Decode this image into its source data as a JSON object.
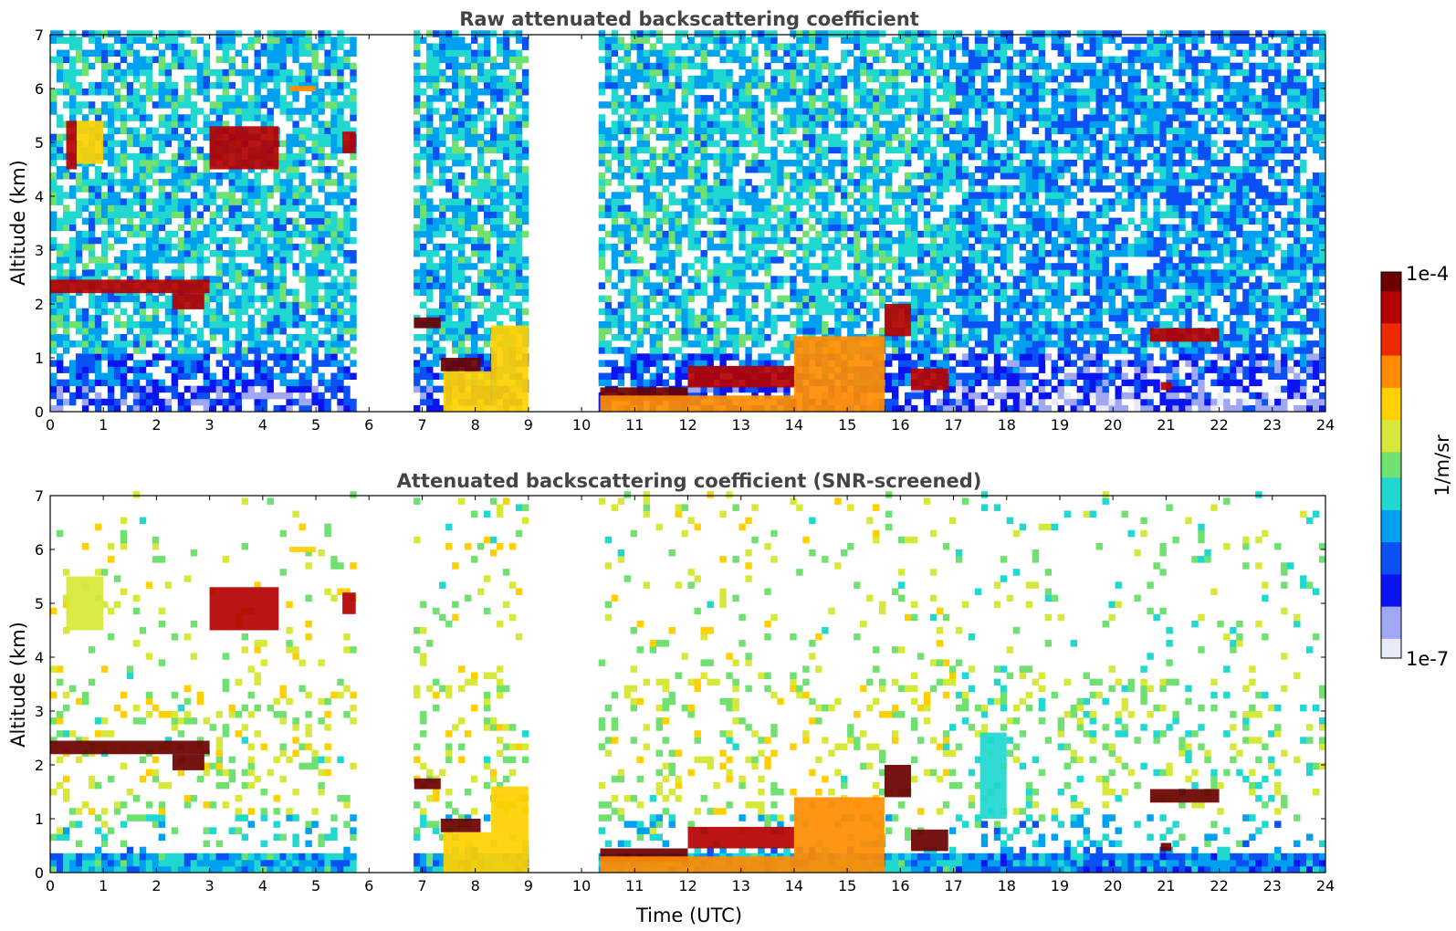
{
  "chart_data": [
    {
      "type": "heatmap",
      "title": "Raw attenuated backscattering coefficient",
      "xlabel": "",
      "ylabel": "Altitude (km)",
      "xlim": [
        0,
        24
      ],
      "ylim": [
        0,
        7
      ],
      "xticks": [
        "0",
        "1",
        "2",
        "3",
        "4",
        "5",
        "6",
        "7",
        "8",
        "9",
        "10",
        "11",
        "12",
        "13",
        "14",
        "15",
        "16",
        "17",
        "18",
        "19",
        "20",
        "21",
        "22",
        "23",
        "24"
      ],
      "yticks": [
        "0",
        "1",
        "2",
        "3",
        "4",
        "5",
        "6",
        "7"
      ],
      "data_gaps_utc": [
        [
          5.75,
          6.85
        ],
        [
          9.0,
          10.35
        ]
      ],
      "features": [
        {
          "t0": 0.3,
          "t1": 0.5,
          "z0": 4.5,
          "z1": 5.4,
          "level": 0.9
        },
        {
          "t0": 0.5,
          "t1": 1.0,
          "z0": 4.6,
          "z1": 5.4,
          "level": 0.7
        },
        {
          "t0": 3.0,
          "t1": 4.3,
          "z0": 4.5,
          "z1": 5.3,
          "level": 0.88
        },
        {
          "t0": 4.5,
          "t1": 5.0,
          "z0": 5.95,
          "z1": 6.05,
          "level": 0.75
        },
        {
          "t0": 5.5,
          "t1": 5.75,
          "z0": 4.8,
          "z1": 5.2,
          "level": 0.92
        },
        {
          "t0": 0.0,
          "t1": 3.0,
          "z0": 2.2,
          "z1": 2.45,
          "level": 0.95
        },
        {
          "t0": 2.3,
          "t1": 2.9,
          "z0": 1.9,
          "z1": 2.2,
          "level": 0.95
        },
        {
          "t0": 6.85,
          "t1": 7.35,
          "z0": 1.55,
          "z1": 1.75,
          "level": 0.97
        },
        {
          "t0": 7.35,
          "t1": 8.1,
          "z0": 0.75,
          "z1": 1.0,
          "level": 0.97
        },
        {
          "t0": 7.4,
          "t1": 8.3,
          "z0": 0.0,
          "z1": 0.75,
          "level": 0.7
        },
        {
          "t0": 8.3,
          "t1": 9.0,
          "z0": 0.0,
          "z1": 1.6,
          "level": 0.65
        },
        {
          "t0": 10.35,
          "t1": 12.0,
          "z0": 0.2,
          "z1": 0.45,
          "level": 0.96
        },
        {
          "t0": 12.0,
          "t1": 14.0,
          "z0": 0.45,
          "z1": 0.85,
          "level": 0.92
        },
        {
          "t0": 10.35,
          "t1": 14.0,
          "z0": 0.0,
          "z1": 0.3,
          "level": 0.72
        },
        {
          "t0": 14.0,
          "t1": 15.7,
          "z0": 0.0,
          "z1": 1.4,
          "level": 0.78
        },
        {
          "t0": 15.7,
          "t1": 16.2,
          "z0": 1.4,
          "z1": 2.0,
          "level": 0.95
        },
        {
          "t0": 16.2,
          "t1": 16.9,
          "z0": 0.4,
          "z1": 0.8,
          "level": 0.9
        },
        {
          "t0": 20.9,
          "t1": 21.1,
          "z0": 0.4,
          "z1": 0.55,
          "level": 0.95
        },
        {
          "t0": 20.7,
          "t1": 22.0,
          "z0": 1.3,
          "z1": 1.55,
          "level": 0.95
        }
      ]
    },
    {
      "type": "heatmap",
      "title": "Attenuated backscattering coefficient (SNR-screened)",
      "xlabel": "Time (UTC)",
      "ylabel": "Altitude (km)",
      "xlim": [
        0,
        24
      ],
      "ylim": [
        0,
        7
      ],
      "xticks": [
        "0",
        "1",
        "2",
        "3",
        "4",
        "5",
        "6",
        "7",
        "8",
        "9",
        "10",
        "11",
        "12",
        "13",
        "14",
        "15",
        "16",
        "17",
        "18",
        "19",
        "20",
        "21",
        "22",
        "23",
        "24"
      ],
      "yticks": [
        "0",
        "1",
        "2",
        "3",
        "4",
        "5",
        "6",
        "7"
      ],
      "data_gaps_utc": [
        [
          5.75,
          6.85
        ],
        [
          9.0,
          10.35
        ]
      ],
      "features": [
        {
          "t0": 0.3,
          "t1": 1.0,
          "z0": 4.5,
          "z1": 5.5,
          "level": 0.6
        },
        {
          "t0": 3.0,
          "t1": 4.3,
          "z0": 4.5,
          "z1": 5.3,
          "level": 0.88
        },
        {
          "t0": 4.5,
          "t1": 5.0,
          "z0": 5.95,
          "z1": 6.05,
          "level": 0.7
        },
        {
          "t0": 5.5,
          "t1": 5.75,
          "z0": 4.8,
          "z1": 5.2,
          "level": 0.92
        },
        {
          "t0": 0.0,
          "t1": 3.0,
          "z0": 2.2,
          "z1": 2.45,
          "level": 1.0
        },
        {
          "t0": 2.3,
          "t1": 2.9,
          "z0": 1.9,
          "z1": 2.2,
          "level": 1.0
        },
        {
          "t0": 6.85,
          "t1": 7.35,
          "z0": 1.55,
          "z1": 1.75,
          "level": 1.0
        },
        {
          "t0": 7.35,
          "t1": 8.1,
          "z0": 0.75,
          "z1": 1.0,
          "level": 0.97
        },
        {
          "t0": 7.4,
          "t1": 8.3,
          "z0": 0.0,
          "z1": 0.75,
          "level": 0.7
        },
        {
          "t0": 8.3,
          "t1": 9.0,
          "z0": 0.0,
          "z1": 1.6,
          "level": 0.65
        },
        {
          "t0": 10.35,
          "t1": 12.0,
          "z0": 0.2,
          "z1": 0.45,
          "level": 1.0
        },
        {
          "t0": 12.0,
          "t1": 14.0,
          "z0": 0.45,
          "z1": 0.85,
          "level": 0.92
        },
        {
          "t0": 10.35,
          "t1": 14.0,
          "z0": 0.0,
          "z1": 0.3,
          "level": 0.72
        },
        {
          "t0": 14.0,
          "t1": 15.7,
          "z0": 0.0,
          "z1": 1.4,
          "level": 0.78
        },
        {
          "t0": 15.7,
          "t1": 16.2,
          "z0": 1.4,
          "z1": 2.0,
          "level": 1.0
        },
        {
          "t0": 16.2,
          "t1": 16.9,
          "z0": 0.4,
          "z1": 0.8,
          "level": 1.0
        },
        {
          "t0": 17.5,
          "t1": 18.0,
          "z0": 1.0,
          "z1": 2.6,
          "level": 0.4
        },
        {
          "t0": 20.9,
          "t1": 21.1,
          "z0": 0.4,
          "z1": 0.55,
          "level": 1.0
        },
        {
          "t0": 20.7,
          "t1": 22.0,
          "z0": 1.3,
          "z1": 1.55,
          "level": 1.0
        }
      ]
    }
  ],
  "colorbar": {
    "label": "1/m/sr",
    "min_label": "1e-7",
    "max_label": "1e-4",
    "scale": "log"
  },
  "colormap": [
    "#e8eaf8",
    "#a0a8f5",
    "#0a14f0",
    "#0a50f5",
    "#00a0f0",
    "#20d8d0",
    "#70e070",
    "#d8e83a",
    "#ffd000",
    "#ff8c00",
    "#ee2a00",
    "#b40000",
    "#6a0000"
  ]
}
